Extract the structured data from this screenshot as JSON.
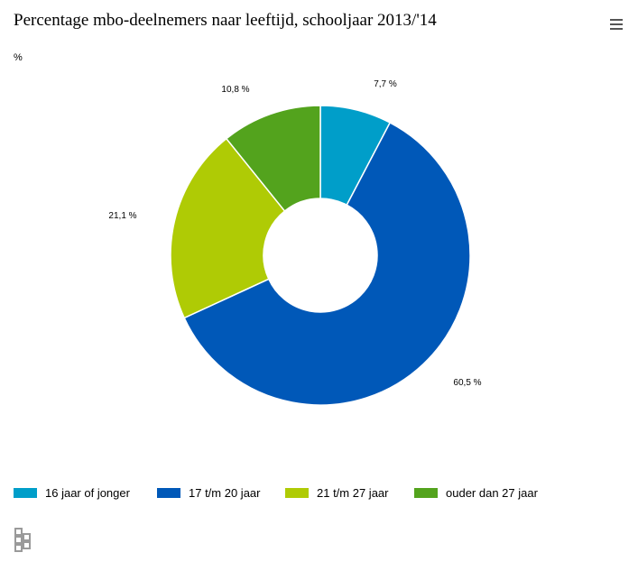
{
  "chart_data": {
    "type": "pie",
    "title": "Percentage mbo-deelnemers naar leeftijd, schooljaar 2013/'14",
    "unit": "%",
    "series": [
      {
        "name": "16 jaar of jonger",
        "value": 7.7,
        "label": "7,7 %",
        "color": "#009ec9"
      },
      {
        "name": "17 t/m 20 jaar",
        "value": 60.5,
        "label": "60,5 %",
        "color": "#0058b8"
      },
      {
        "name": "21 t/m 27 jaar",
        "value": 21.1,
        "label": "21,1 %",
        "color": "#afcb05"
      },
      {
        "name": "ouder dan 27 jaar",
        "value": 10.8,
        "label": "10,8 %",
        "color": "#53a31d"
      }
    ],
    "donut": true,
    "legend_position": "bottom"
  },
  "menu": {
    "icon": "hamburger-menu-icon"
  },
  "logo": {
    "icon": "cbs-logo-icon"
  }
}
